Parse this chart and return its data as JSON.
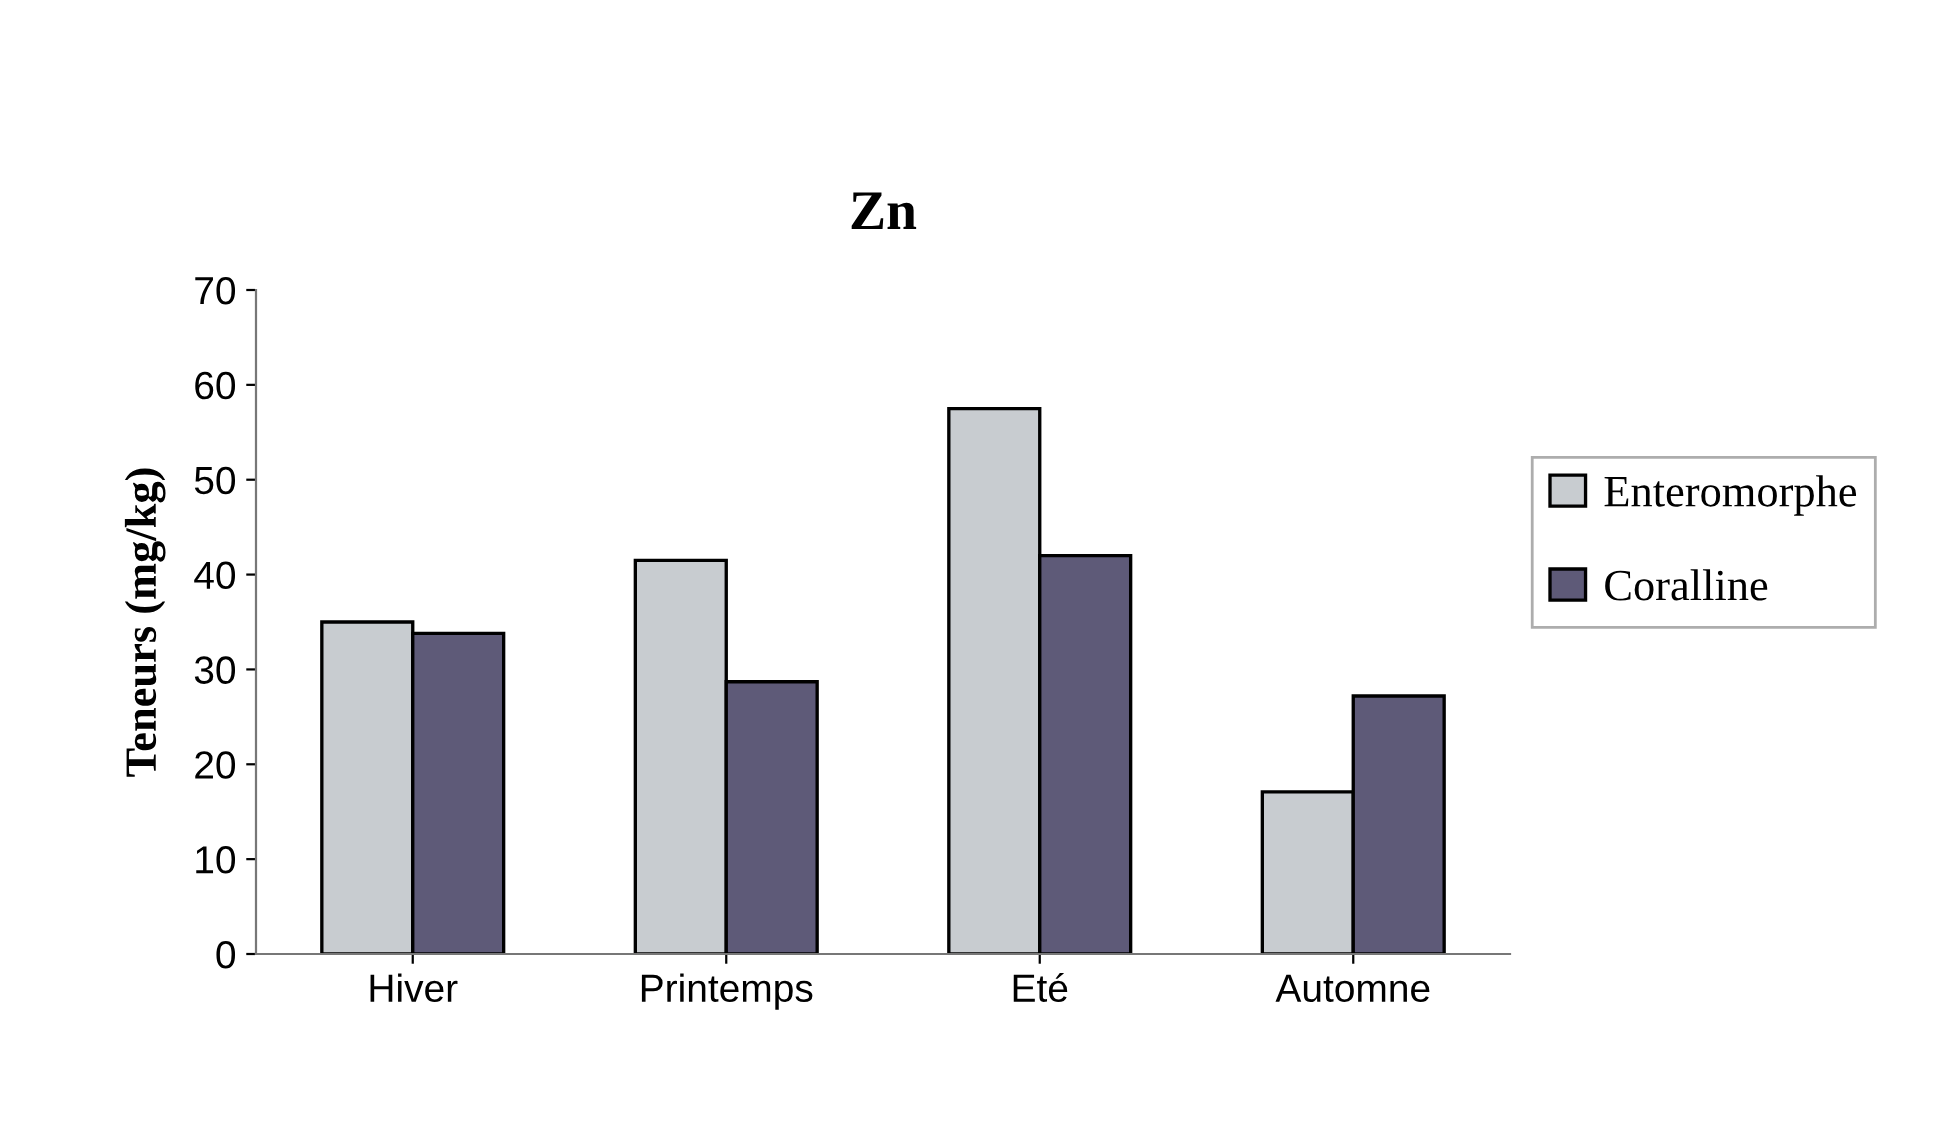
{
  "chart_data": {
    "type": "bar",
    "title": "Zn",
    "ylabel": "Teneurs (mg/kg)",
    "categories": [
      "Hiver",
      "Printemps",
      "Eté",
      "Automne"
    ],
    "series": [
      {
        "name": "Enteromorphe",
        "color": "#c8ccd0",
        "values": [
          35.0,
          41.5,
          57.5,
          17.1
        ]
      },
      {
        "name": "Coralline",
        "color": "#5e5a78",
        "values": [
          33.8,
          28.7,
          42.0,
          27.2
        ]
      }
    ],
    "ylim": [
      0,
      70
    ],
    "yticks": [
      0,
      10,
      20,
      30,
      40,
      50,
      60,
      70
    ],
    "grid": false,
    "legend": "right"
  }
}
